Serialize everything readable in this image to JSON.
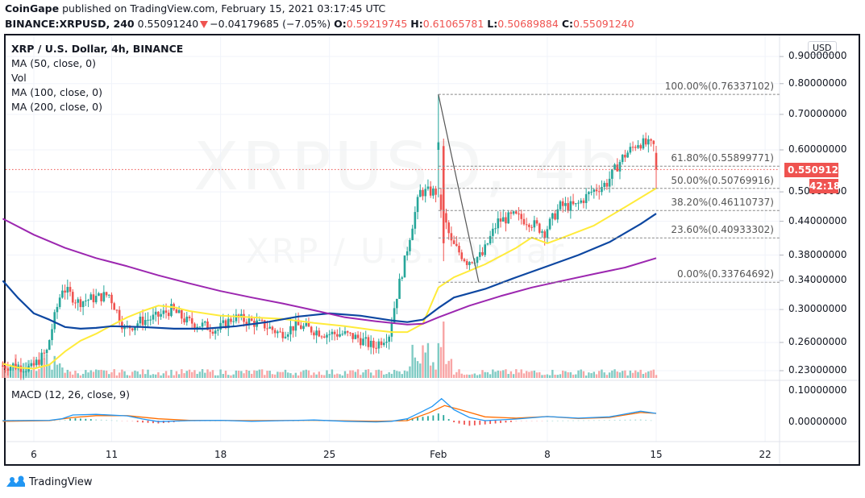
{
  "header": {
    "publisher": "CoinGape",
    "published_text": "published on TradingView.com, February 15, 2021 03:17:45 UTC",
    "symbol": "BINANCE:XRPUSD, 240",
    "last_price": "0.55091240",
    "change": "−0.04179685 (−7.05%)",
    "open_label": "O:",
    "open": "0.59219745",
    "high_label": "H:",
    "high": "0.61065781",
    "low_label": "L:",
    "low": "0.50689884",
    "close_label": "C:",
    "close": "0.55091240"
  },
  "legend": {
    "title": "XRP / U.S. Dollar, 4h, BINANCE",
    "items": [
      "MA (50, close, 0)",
      "Vol",
      "MA (100, close, 0)",
      "MA (200, close, 0)"
    ]
  },
  "watermark": {
    "symbol": "XRPUSD, 4h",
    "name": "XRP / U.S. Dollar"
  },
  "currency_button": "USD",
  "price_tag": {
    "value": "0.55091240",
    "countdown": "42:18",
    "color": "#ef5350"
  },
  "macd": {
    "label": "MACD (12, 26, close, 9)"
  },
  "y_axis_ticks": [
    "0.90000000",
    "0.80000000",
    "0.70000000",
    "0.60000000",
    "0.50000000",
    "0.44000000",
    "0.38000000",
    "0.34000000",
    "0.30000000",
    "0.26000000",
    "0.23000000"
  ],
  "macd_axis_ticks": [
    "0.10000000",
    "0.00000000"
  ],
  "x_axis_ticks": [
    "6",
    "11",
    "18",
    "25",
    "Feb",
    "8",
    "15",
    "22"
  ],
  "fib_levels": [
    {
      "label": "100.00%(0.76337102)",
      "value": 0.76337102
    },
    {
      "label": "61.80%(0.55899771)",
      "value": 0.55899771
    },
    {
      "label": "50.00%(0.50769916)",
      "value": 0.50769916
    },
    {
      "label": "38.20%(0.46110737)",
      "value": 0.46110737
    },
    {
      "label": "23.60%(0.40933302)",
      "value": 0.40933302
    },
    {
      "label": "0.00%(0.33764692)",
      "value": 0.33764692
    }
  ],
  "colors": {
    "up": "#26a69a",
    "down": "#ef5350",
    "ma50": "#ffeb3b",
    "ma100": "#0d47a1",
    "ma200": "#9c27b0",
    "macd": "#2196f3",
    "signal": "#ff6d00",
    "grid": "#f0f3fa"
  },
  "footer": {
    "brand": "TradingView"
  },
  "chart_data": {
    "type": "candlestick",
    "title": "XRP / U.S. Dollar, 4h, BINANCE",
    "xlabel": "",
    "ylabel": "USD",
    "y_scale": "log",
    "ylim": [
      0.22,
      0.93
    ],
    "x_ticks": [
      "6",
      "11",
      "18",
      "25",
      "Feb",
      "8",
      "15",
      "22"
    ],
    "approx_daily_close": {
      "x": [
        "Jan 4",
        "Jan 5",
        "Jan 6",
        "Jan 7",
        "Jan 8",
        "Jan 9",
        "Jan 10",
        "Jan 11",
        "Jan 12",
        "Jan 13",
        "Jan 14",
        "Jan 15",
        "Jan 16",
        "Jan 17",
        "Jan 18",
        "Jan 19",
        "Jan 20",
        "Jan 21",
        "Jan 22",
        "Jan 23",
        "Jan 24",
        "Jan 25",
        "Jan 26",
        "Jan 27",
        "Jan 28",
        "Jan 29",
        "Jan 30",
        "Jan 31",
        "Feb 1",
        "Feb 2",
        "Feb 3",
        "Feb 4",
        "Feb 5",
        "Feb 6",
        "Feb 7",
        "Feb 8",
        "Feb 9",
        "Feb 10",
        "Feb 11",
        "Feb 12",
        "Feb 13",
        "Feb 14",
        "Feb 15"
      ],
      "close": [
        0.235,
        0.232,
        0.25,
        0.33,
        0.31,
        0.315,
        0.32,
        0.275,
        0.285,
        0.29,
        0.3,
        0.285,
        0.28,
        0.275,
        0.29,
        0.285,
        0.28,
        0.27,
        0.28,
        0.275,
        0.27,
        0.27,
        0.265,
        0.255,
        0.27,
        0.37,
        0.5,
        0.5,
        0.4,
        0.37,
        0.38,
        0.44,
        0.45,
        0.44,
        0.42,
        0.47,
        0.47,
        0.5,
        0.52,
        0.58,
        0.62,
        0.61,
        0.551
      ]
    },
    "series": [
      {
        "name": "MA (50, close, 0)",
        "color": "#ffeb3b",
        "approx_end": 0.508
      },
      {
        "name": "MA (100, close, 0)",
        "color": "#0d47a1",
        "approx_end": 0.455
      },
      {
        "name": "MA (200, close, 0)",
        "color": "#9c27b0",
        "approx_end": 0.375
      }
    ],
    "fibonacci_retracement": [
      {
        "level": "100.00%",
        "price": 0.76337102
      },
      {
        "level": "61.80%",
        "price": 0.55899771
      },
      {
        "level": "50.00%",
        "price": 0.50769916
      },
      {
        "level": "38.20%",
        "price": 0.46110737
      },
      {
        "level": "23.60%",
        "price": 0.40933302
      },
      {
        "level": "0.00%",
        "price": 0.33764692
      }
    ],
    "last_price": 0.5509124,
    "macd": {
      "params": "12, 26, close, 9",
      "ylim": [
        -0.03,
        0.11
      ],
      "peak_near": "Feb 1 (~0.07)"
    }
  }
}
